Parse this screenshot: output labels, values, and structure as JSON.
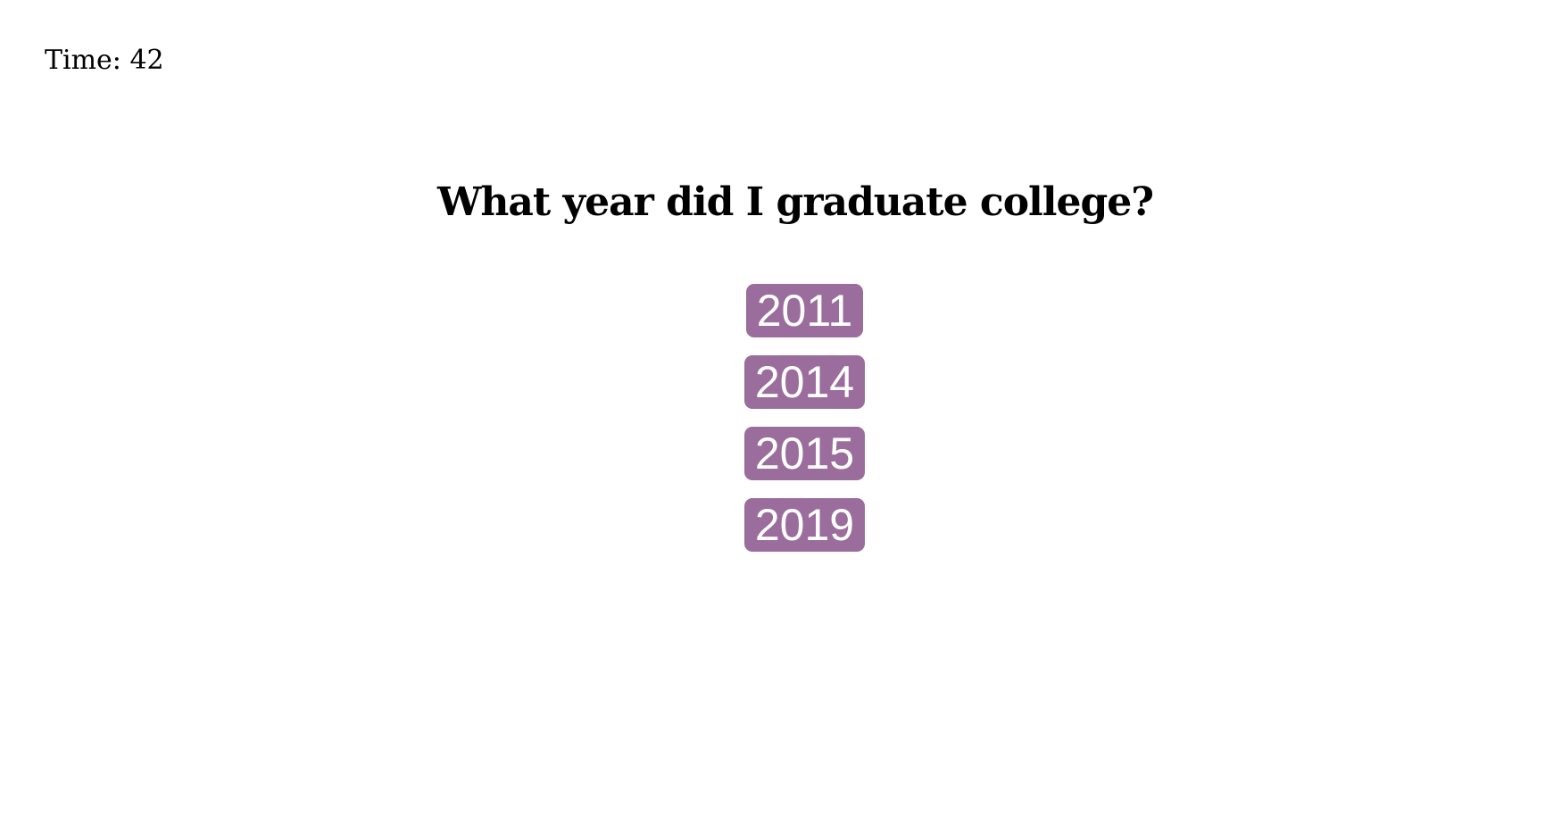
{
  "timer": {
    "label": "Time: 42"
  },
  "question": {
    "text": "What year did I graduate college?"
  },
  "answers": [
    {
      "label": "2011"
    },
    {
      "label": "2014"
    },
    {
      "label": "2015"
    },
    {
      "label": "2019"
    }
  ],
  "colors": {
    "answer_background": "#9b6d9d",
    "answer_text": "#ffffff",
    "page_background": "#ffffff",
    "text": "#000000"
  }
}
